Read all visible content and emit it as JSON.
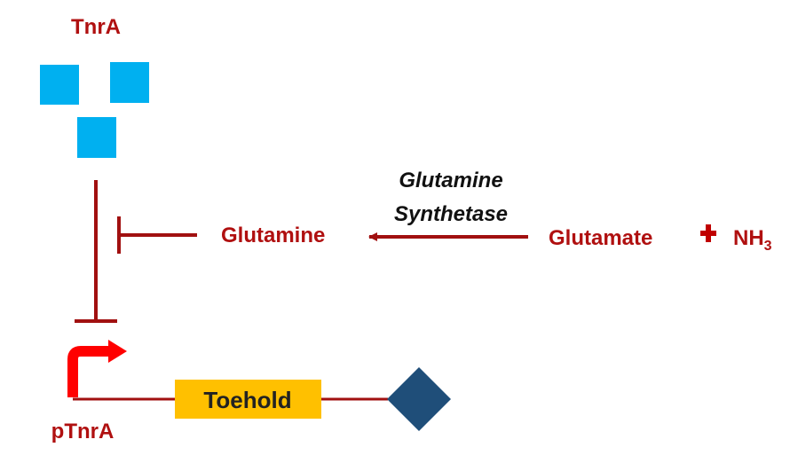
{
  "labels": {
    "tnra": "TnrA",
    "ptnra": "pTnrA",
    "glutamine": "Glutamine",
    "enzyme_line1": "Glutamine",
    "enzyme_line2": "Synthetase",
    "glutamate": "Glutamate",
    "nh3_base": "NH",
    "nh3_sub": "3",
    "toehold": "Toehold"
  },
  "colors": {
    "dark_red": "#a11010",
    "label_red": "#b01010",
    "promoter_red": "#ff0000",
    "tnra_blue": "#00b0f0",
    "toehold_yellow": "#ffc000",
    "reporter_navy": "#1f4e79"
  }
}
